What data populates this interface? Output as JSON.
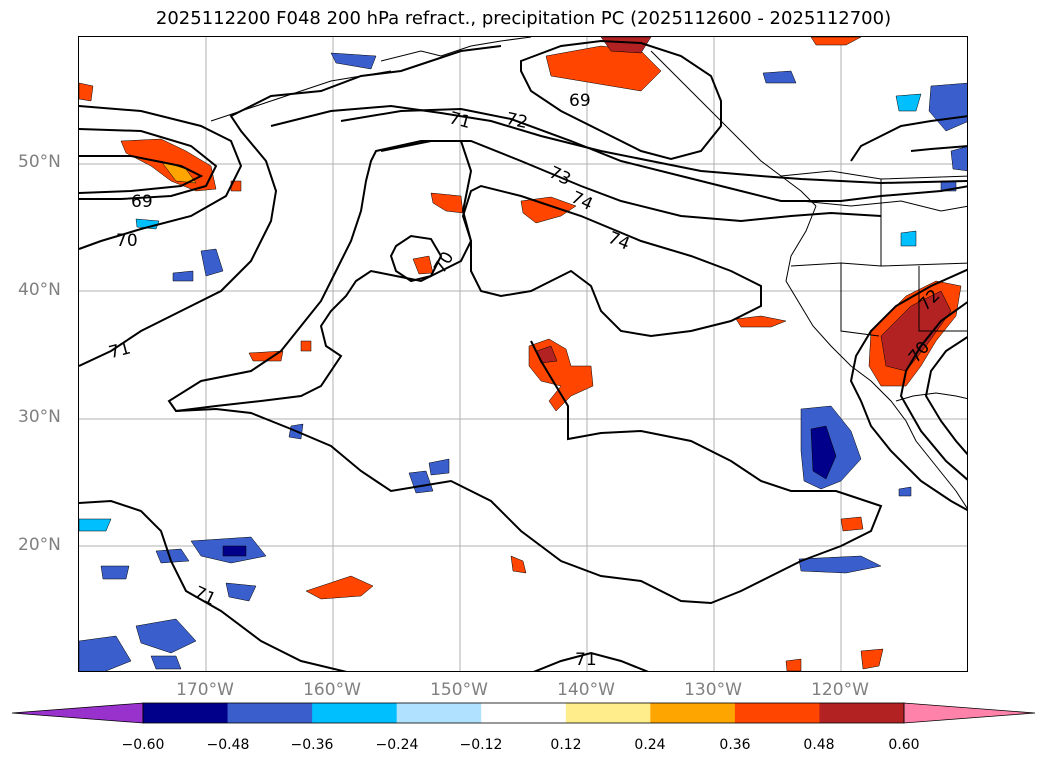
{
  "title": "2025112200 F048 200 hPa refract., precipitation PC (2025112600 - 2025112700)",
  "lat_labels": [
    "50°N",
    "40°N",
    "30°N",
    "20°N"
  ],
  "lon_labels": [
    "170°W",
    "160°W",
    "150°W",
    "140°W",
    "130°W",
    "120°W"
  ],
  "contour_labels": [
    "69",
    "70",
    "71",
    "72",
    "73",
    "74",
    "74",
    "69",
    "70",
    "71",
    "71",
    "71",
    "72",
    "70"
  ],
  "colorbar": {
    "tick_labels": [
      "−0.60",
      "−0.48",
      "−0.36",
      "−0.24",
      "−0.12",
      "0.12",
      "0.24",
      "0.36",
      "0.48",
      "0.60"
    ],
    "colors": [
      "#9932cc",
      "#00008b",
      "#3a5fcd",
      "#00bfff",
      "#b0e2ff",
      "#ffffff",
      "#ffec8b",
      "#ffa500",
      "#ff4500",
      "#b22222",
      "#ff82ab"
    ]
  },
  "colors": {
    "grid": "#b0b0b0",
    "contour": "#000000",
    "coast": "#000000",
    "axis_label": "#808080"
  }
}
